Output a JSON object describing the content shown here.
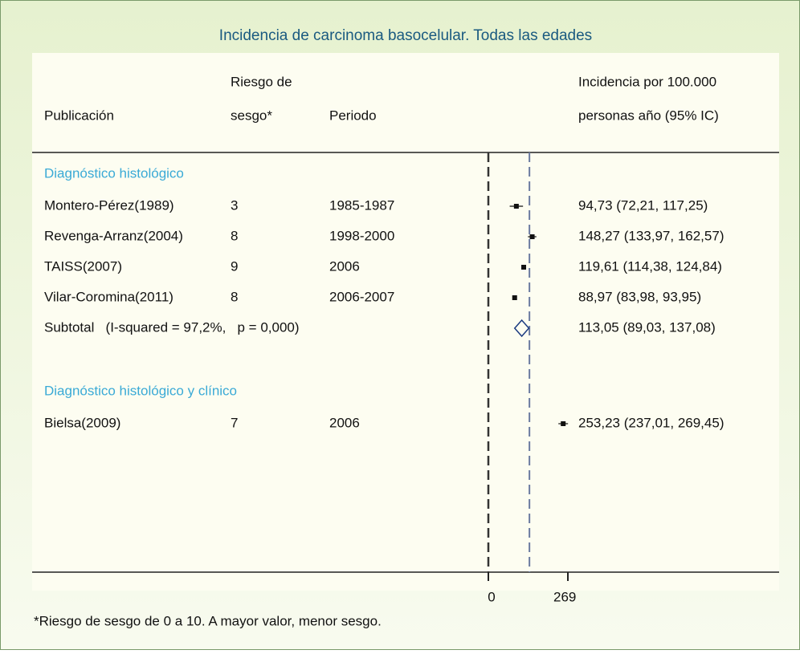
{
  "chart_data": {
    "type": "forest",
    "title": "Incidencia de carcinoma basocelular. Todas las edades",
    "columns": [
      [
        "Publicación"
      ],
      [
        "Riesgo de",
        "sesgo*"
      ],
      [
        "Periodo"
      ],
      [
        "Incidencia por 100.000",
        "personas año (95% IC)"
      ]
    ],
    "groups": [
      {
        "name": "Diagnóstico histológico",
        "studies": [
          {
            "name": "Montero-Pérez(1989)",
            "bias": 3,
            "period": "1985-1987",
            "estimate": 94.73,
            "lower": 72.21,
            "upper": 117.25,
            "value_label": "94,73 (72,21, 117,25)"
          },
          {
            "name": "Revenga-Arranz(2004)",
            "bias": 8,
            "period": "1998-2000",
            "estimate": 148.27,
            "lower": 133.97,
            "upper": 162.57,
            "value_label": "148,27 (133,97, 162,57)"
          },
          {
            "name": "TAISS(2007)",
            "bias": 9,
            "period": "2006",
            "estimate": 119.61,
            "lower": 114.38,
            "upper": 124.84,
            "value_label": "119,61 (114,38, 124,84)"
          },
          {
            "name": "Vilar-Coromina(2011)",
            "bias": 8,
            "period": "2006-2007",
            "estimate": 88.97,
            "lower": 83.98,
            "upper": 93.95,
            "value_label": "88,97 (83,98, 93,95)"
          }
        ],
        "subtotal": {
          "label": "Subtotal   (I-squared = 97,2%,   p = 0,000)",
          "estimate": 113.05,
          "lower": 89.03,
          "upper": 137.08,
          "value_label": "113,05 (89,03, 137,08)"
        }
      },
      {
        "name": "Diagnóstico histológico y clínico",
        "studies": [
          {
            "name": "Bielsa(2009)",
            "bias": 7,
            "period": "2006",
            "estimate": 253.23,
            "lower": 237.01,
            "upper": 269.45,
            "value_label": "253,23 (237,01, 269,45)"
          }
        ]
      }
    ],
    "overall_line": 139,
    "xlim": [
      0,
      269
    ],
    "xticks": [
      0,
      269
    ],
    "footnote": "*Riesgo de sesgo de 0 a 10. A mayor valor, menor sesgo."
  }
}
